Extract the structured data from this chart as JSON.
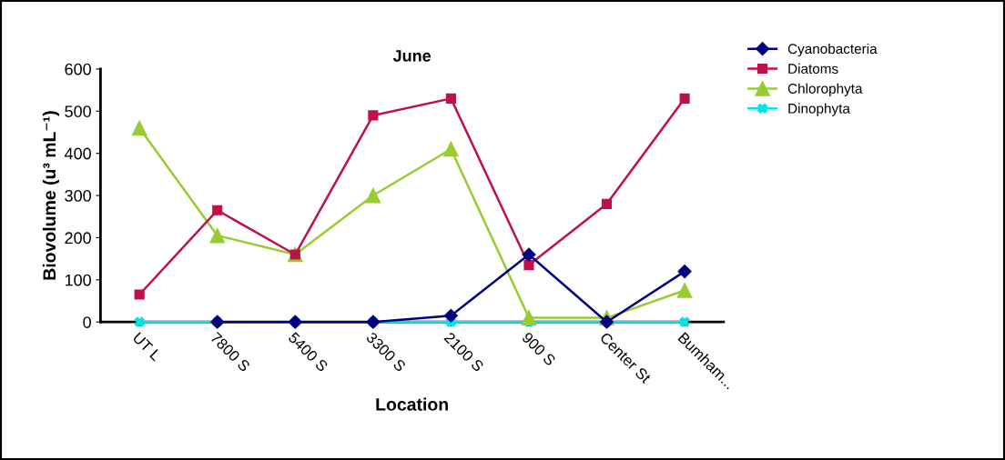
{
  "chart_data": {
    "type": "line",
    "title": "June",
    "xlabel": "Location",
    "ylabel": "Biovolume (u³ mL⁻¹)",
    "categories": [
      "UT L",
      "7800 S",
      "5400 S",
      "3300 S",
      "2100 S",
      "900 S",
      "Center St",
      "Bumham..."
    ],
    "ylim": [
      0,
      600
    ],
    "yticks": [
      0,
      100,
      200,
      300,
      400,
      500,
      600
    ],
    "grid": false,
    "legend": "top right",
    "series": [
      {
        "name": "Cyanobacteria",
        "color": "#000080",
        "marker": "diamond",
        "values": [
          null,
          0,
          0,
          0,
          15,
          160,
          0,
          120
        ]
      },
      {
        "name": "Diatoms",
        "color": "#c0104a",
        "marker": "square",
        "values": [
          65,
          265,
          160,
          490,
          530,
          135,
          280,
          530
        ]
      },
      {
        "name": "Chlorophyta",
        "color": "#99cc33",
        "marker": "triangle",
        "values": [
          460,
          205,
          160,
          300,
          410,
          10,
          10,
          75
        ]
      },
      {
        "name": "Dinophyta",
        "color": "#00e5e5",
        "marker": "cross",
        "values": [
          0,
          0,
          0,
          0,
          0,
          0,
          0,
          0
        ]
      }
    ]
  }
}
